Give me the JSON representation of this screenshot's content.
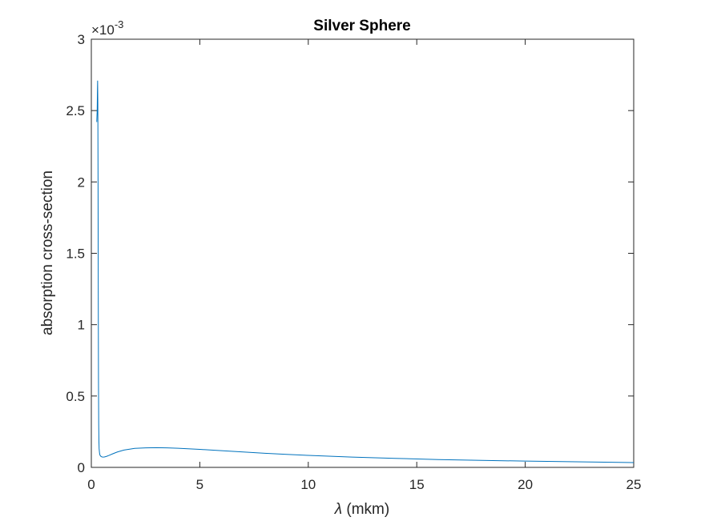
{
  "chart_data": {
    "type": "line",
    "title": "Silver Sphere",
    "xlabel_symbol": "λ",
    "xlabel_unit": "(mkm)",
    "ylabel": "absorption cross-section",
    "y_exponent_base": "×10",
    "y_exponent_power": "-3",
    "xlim": [
      0,
      25
    ],
    "ylim": [
      0,
      0.003
    ],
    "x_ticks": [
      0,
      5,
      10,
      15,
      20,
      25
    ],
    "x_tick_labels": [
      "0",
      "5",
      "10",
      "15",
      "20",
      "25"
    ],
    "y_ticks": [
      0,
      0.0005,
      0.001,
      0.0015,
      0.002,
      0.0025,
      0.003
    ],
    "y_tick_labels": [
      "0",
      "0.5",
      "1",
      "1.5",
      "2",
      "2.5",
      "3"
    ],
    "grid": false,
    "series_color": "#0072BD",
    "series": [
      {
        "x": [
          0.25,
          0.27,
          0.28,
          0.29,
          0.3,
          0.31,
          0.32,
          0.33,
          0.34,
          0.35,
          0.36,
          0.38,
          0.4,
          0.45,
          0.5,
          0.55,
          0.6,
          0.7,
          0.8,
          1.0,
          1.2,
          1.5,
          2.0,
          2.5,
          3.0,
          3.5,
          4.0,
          5.0,
          6.0,
          7.0,
          8.0,
          9.0,
          10.0,
          12.0,
          14.0,
          16.0,
          18.0,
          20.0,
          22.0,
          24.0,
          25.0
        ],
        "y": [
          0.00242,
          0.0025,
          0.00262,
          0.00271,
          0.00255,
          0.002,
          0.0012,
          0.0006,
          0.0003,
          0.00018,
          0.00013,
          9.8e-05,
          8.5e-05,
          7.6e-05,
          7.3e-05,
          7.2e-05,
          7.3e-05,
          7.7e-05,
          8.3e-05,
          9.6e-05,
          0.000108,
          0.000121,
          0.000133,
          0.000137,
          0.000138,
          0.000137,
          0.000134,
          0.000126,
          0.000117,
          0.000108,
          9.9e-05,
          9.1e-05,
          8.4e-05,
          7.2e-05,
          6.3e-05,
          5.5e-05,
          4.9e-05,
          4.4e-05,
          4e-05,
          3.6e-05,
          3.4e-05
        ]
      }
    ]
  }
}
